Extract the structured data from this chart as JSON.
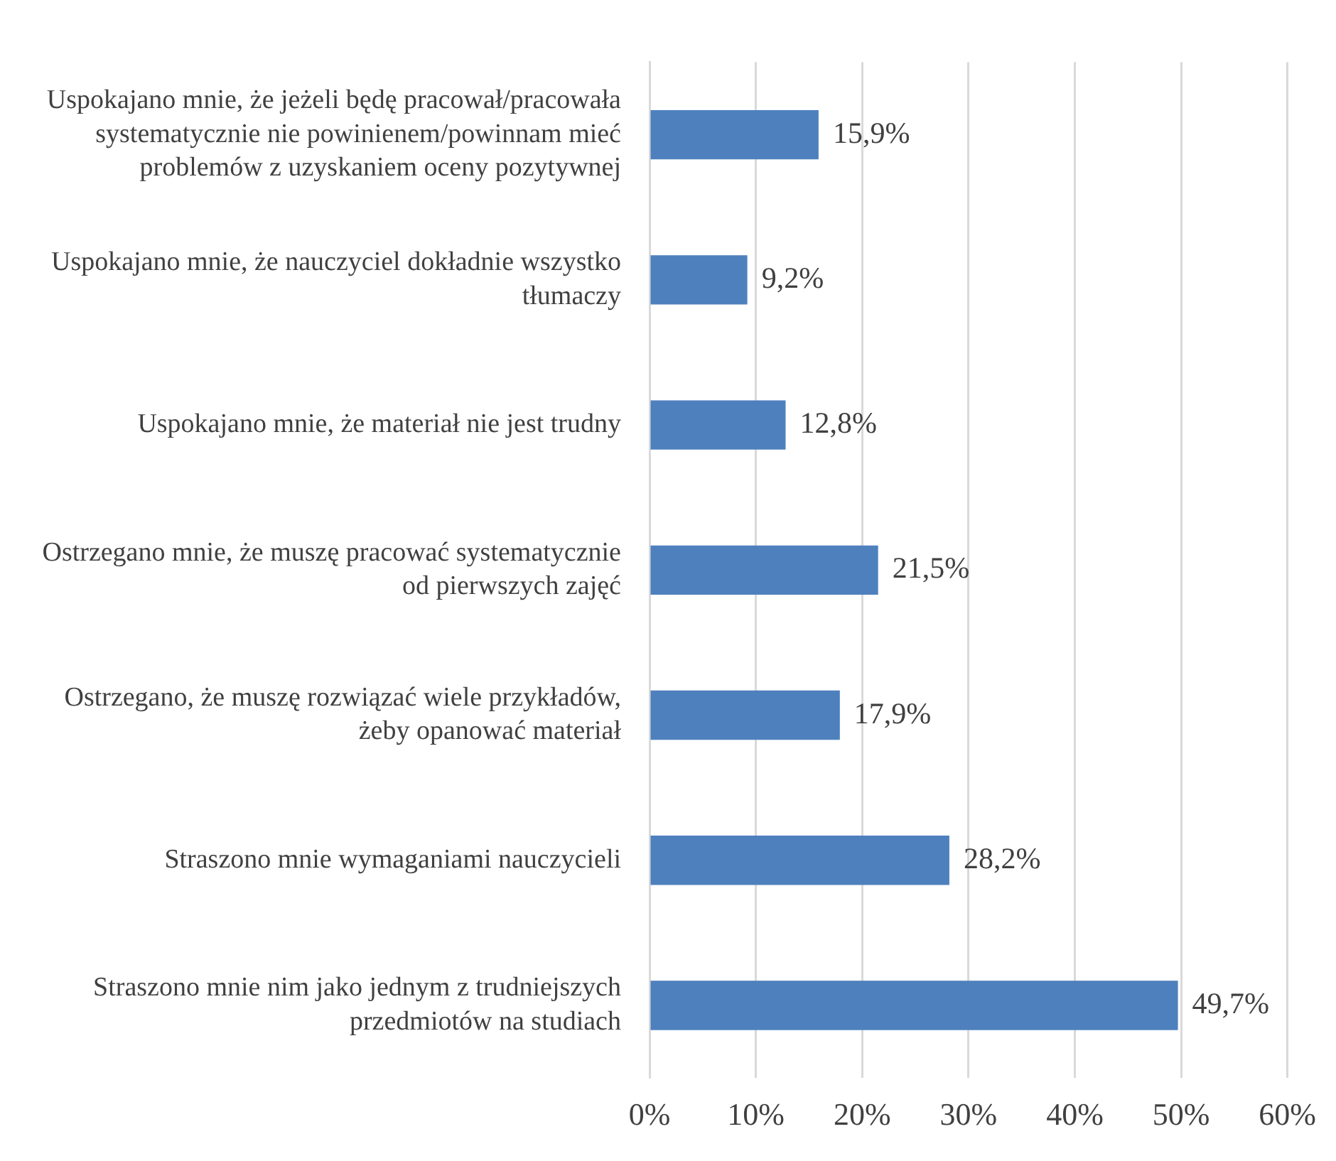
{
  "chart_data": {
    "type": "bar",
    "orientation": "horizontal",
    "categories": [
      "Uspokajano mnie, że jeżeli będę pracował/pracowała systematycznie nie powinienem/powinnam mieć problemów z uzyskaniem oceny pozytywnej",
      "Uspokajano mnie, że nauczyciel dokładnie wszystko tłumaczy",
      "Uspokajano mnie, że materiał nie jest trudny",
      "Ostrzegano mnie, że muszę pracować systematycznie od pierwszych zajęć",
      "Ostrzegano, że muszę rozwiązać wiele przykładów, żeby opanować materiał",
      "Straszono mnie wymaganiami nauczycieli",
      "Straszono mnie nim jako jednym z trudniejszych przedmiotów na studiach"
    ],
    "values": [
      15.9,
      9.2,
      12.8,
      21.5,
      17.9,
      28.2,
      49.7
    ],
    "value_labels": [
      "15,9%",
      "9,2%",
      "12,8%",
      "21,5%",
      "17,9%",
      "28,2%",
      "49,7%"
    ],
    "color": "#4e80bd",
    "xlim": [
      0,
      60
    ],
    "xticks": [
      {
        "value": 0,
        "label": "0%"
      },
      {
        "value": 10,
        "label": "10%"
      },
      {
        "value": 20,
        "label": "20%"
      },
      {
        "value": 30,
        "label": "30%"
      },
      {
        "value": 40,
        "label": "40%"
      },
      {
        "value": 50,
        "label": "50%"
      },
      {
        "value": 60,
        "label": "60%"
      }
    ],
    "grid": "x",
    "legend": false
  }
}
